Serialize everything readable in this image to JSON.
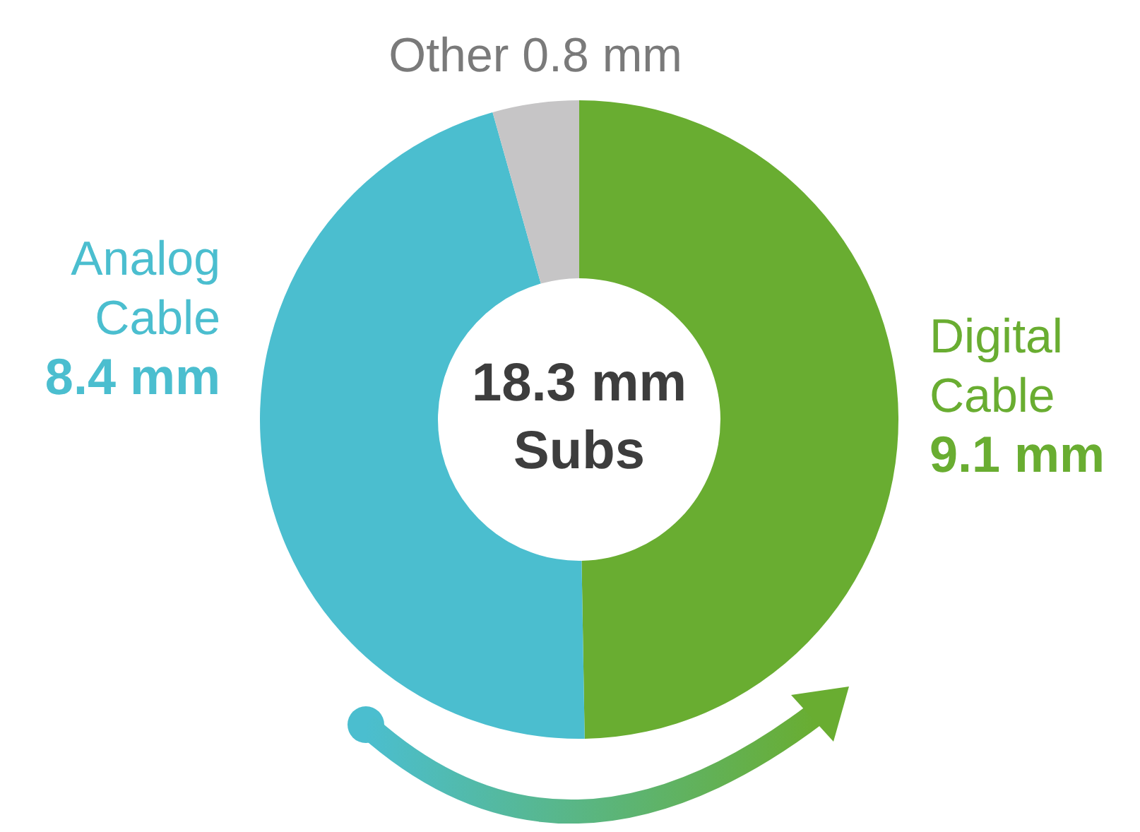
{
  "chart_data": {
    "type": "donut",
    "categories": [
      "Digital Cable",
      "Analog Cable",
      "Other"
    ],
    "values": [
      9.1,
      8.4,
      0.8
    ],
    "colors": [
      "#69ad31",
      "#4bbecf",
      "#c6c5c6"
    ],
    "value_labels": [
      "9.1 mm",
      "8.4 mm",
      "0.8 mm"
    ],
    "annotations": [
      "18.3 mm",
      "Subs"
    ],
    "legend": false
  }
}
